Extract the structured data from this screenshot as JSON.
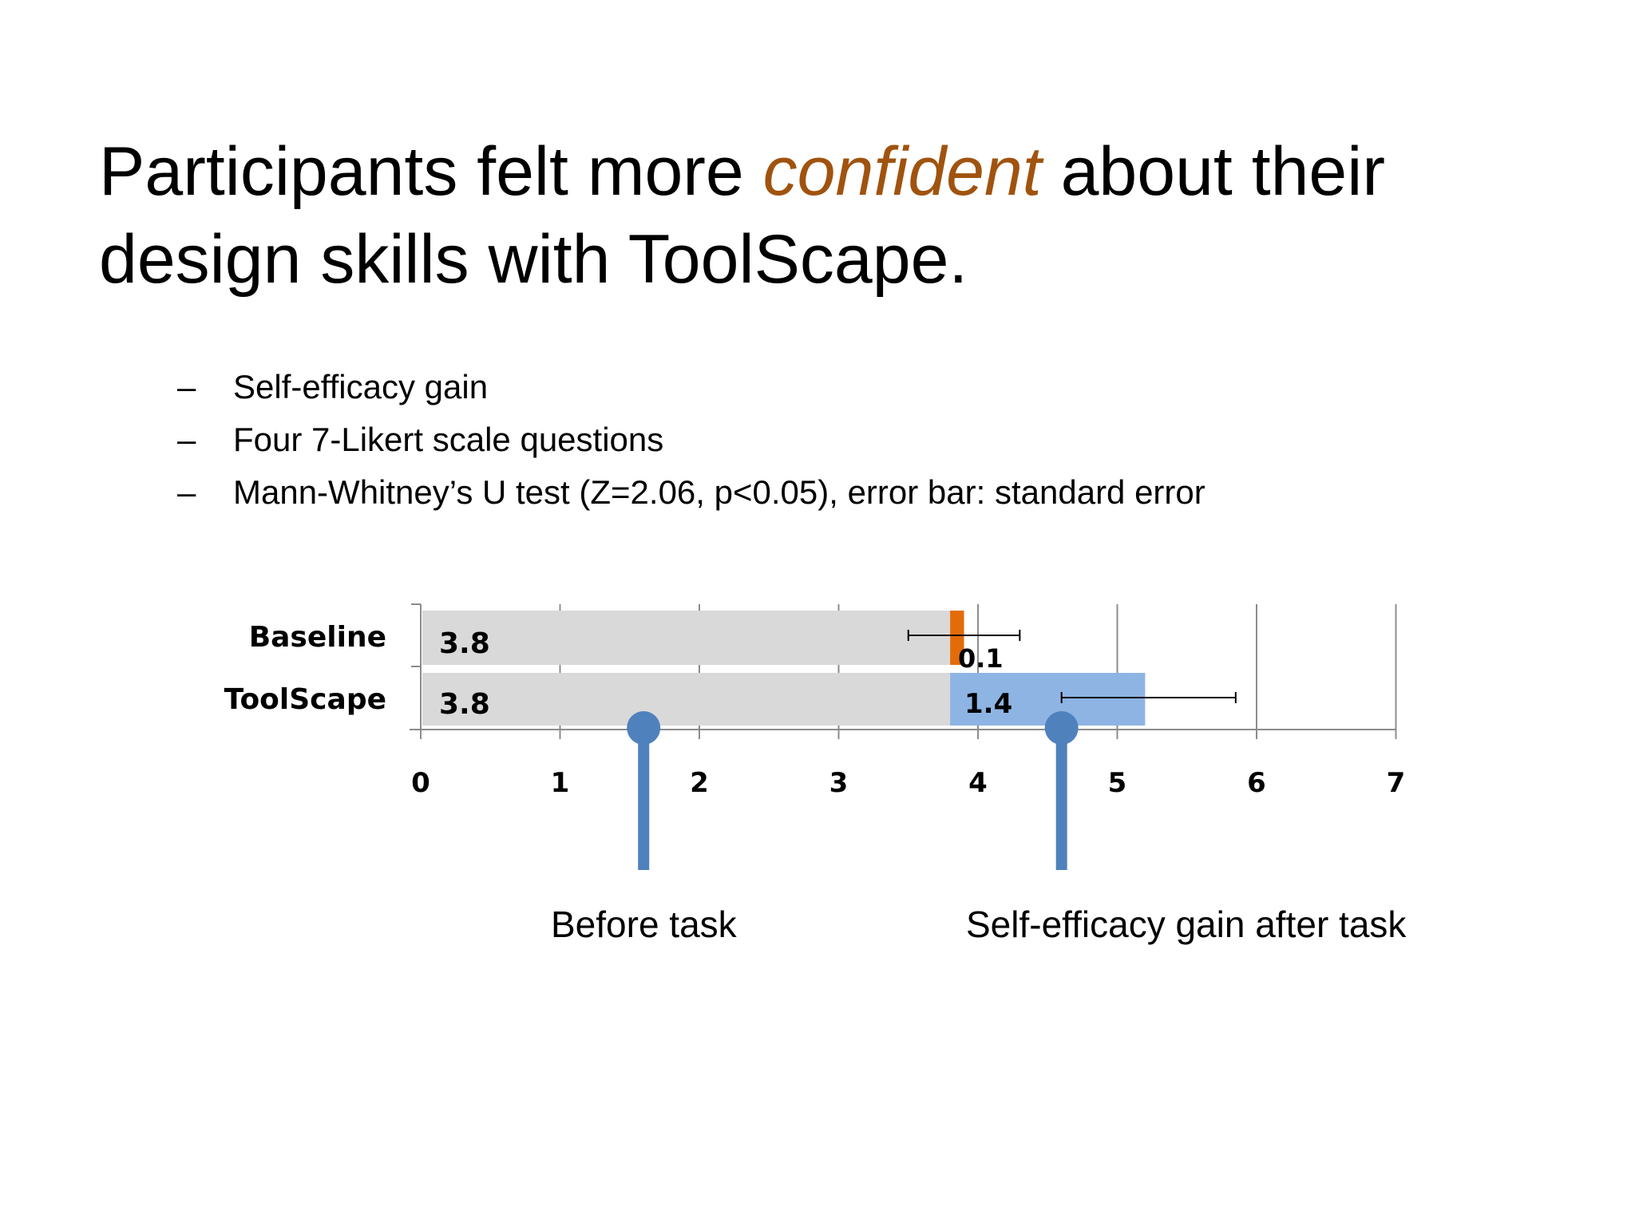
{
  "slide": {
    "title_before": "Participants felt more ",
    "title_highlight": "confident",
    "title_after": " about their design skills with ToolScape.",
    "bullets": [
      {
        "dash": "–",
        "text": "Self-efficacy gain"
      },
      {
        "dash": "–",
        "text": "Four 7-Likert scale questions"
      },
      {
        "dash": "–",
        "text": "Mann-Whitney’s U test (Z=2.06, p<0.05), error bar: standard error"
      }
    ],
    "callouts": {
      "before": "Before task",
      "gain": "Self-efficacy gain after task"
    }
  },
  "colors": {
    "title_highlight": "#a0530f",
    "base_bar": "#d9d9d9",
    "baseline_gain": "#e36c09",
    "toolscape_gain": "#8eb4e3",
    "pointer": "#4f81bd",
    "gridline": "#8c8c8c"
  },
  "chart_data": {
    "type": "bar",
    "orientation": "horizontal",
    "stacked": true,
    "categories": [
      "Baseline",
      "ToolScape"
    ],
    "series": [
      {
        "values": [
          3.8,
          3.8
        ],
        "labels": [
          "3.8",
          "3.8"
        ]
      },
      {
        "values": [
          0.1,
          1.4
        ],
        "labels": [
          "0.1",
          "1.4"
        ]
      }
    ],
    "error_bars": [
      {
        "category": "Baseline",
        "low": 3.5,
        "high": 4.3
      },
      {
        "category": "ToolScape",
        "low": 4.6,
        "high": 5.85
      }
    ],
    "xlim": [
      0,
      7
    ],
    "xticks": [
      "0",
      "1",
      "2",
      "3",
      "4",
      "5",
      "6",
      "7"
    ],
    "grid": true,
    "legend": "none",
    "annotations": [
      {
        "label": "Before task",
        "x": 1.6
      },
      {
        "label": "Self-efficacy gain after task",
        "x": 4.6
      }
    ]
  }
}
